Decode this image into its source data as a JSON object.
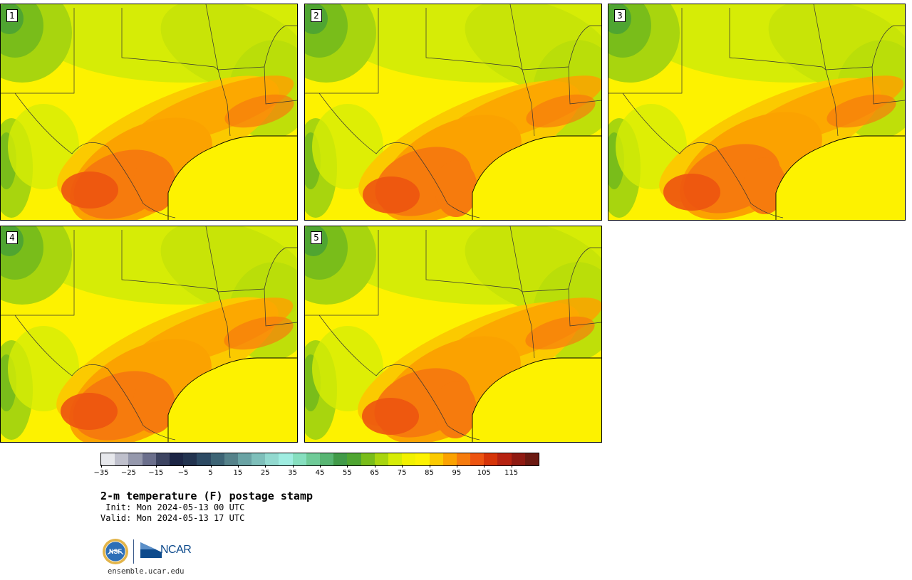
{
  "panels": [
    {
      "label": "1",
      "variant": 0
    },
    {
      "label": "2",
      "variant": 1
    },
    {
      "label": "3",
      "variant": 2
    },
    {
      "label": "4",
      "variant": 3
    },
    {
      "label": "5",
      "variant": 4
    }
  ],
  "colorbar": {
    "colors": [
      "#e7e8ec",
      "#bfc0cc",
      "#9598ac",
      "#6b6f8c",
      "#3d4461",
      "#1c2545",
      "#22334f",
      "#2d4a63",
      "#3d6475",
      "#55828a",
      "#6aa3a4",
      "#7ebfba",
      "#92d9cf",
      "#9fede1",
      "#86dfbf",
      "#6fcb98",
      "#58b572",
      "#419a48",
      "#4fa531",
      "#79bd1a",
      "#a8d50e",
      "#d6ec06",
      "#f2f100",
      "#fdf200",
      "#fbca00",
      "#fba200",
      "#f67b0d",
      "#ed5410",
      "#d63408",
      "#b62211",
      "#8f1a12",
      "#6b1911"
    ],
    "tick_labels": [
      "−35",
      "−25",
      "−15",
      "−5",
      "5",
      "15",
      "25",
      "35",
      "45",
      "55",
      "65",
      "75",
      "85",
      "95",
      "105",
      "115"
    ]
  },
  "title": "2-m temperature (F) postage stamp",
  "init_line": " Init: Mon 2024-05-13 00 UTC",
  "valid_line": "Valid: Mon 2024-05-13 17 UTC",
  "logo_text": "NCAR",
  "logo_icons": [
    "nsf-logo-icon",
    "ncar-logo-icon"
  ],
  "site": "ensemble.ucar.edu"
}
